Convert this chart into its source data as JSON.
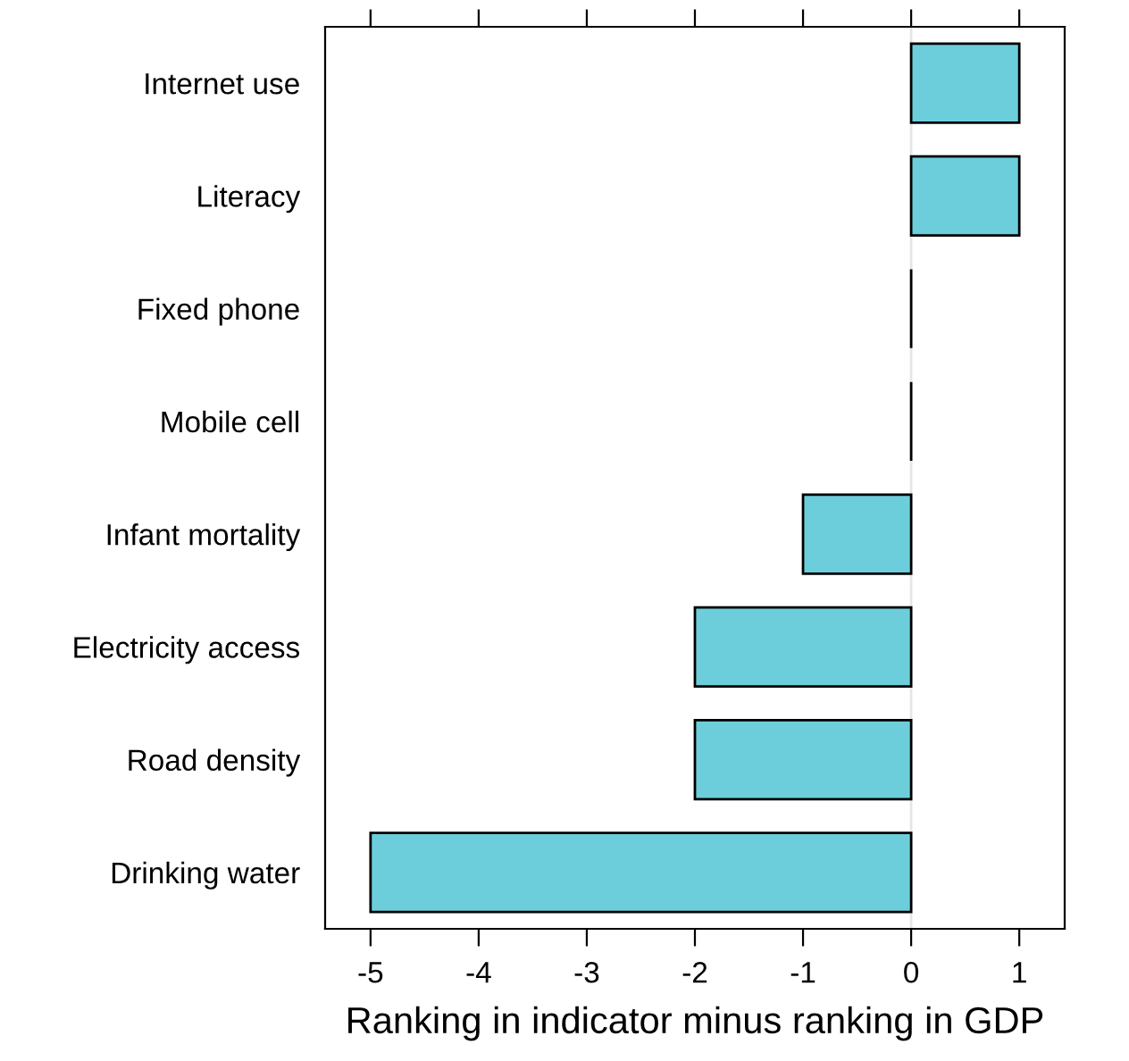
{
  "chart_data": {
    "type": "bar",
    "orientation": "horizontal",
    "categories": [
      "Internet use",
      "Literacy",
      "Fixed phone",
      "Mobile cell",
      "Infant mortality",
      "Electricity access",
      "Road density",
      "Drinking water"
    ],
    "values": [
      1,
      1,
      0,
      0,
      -1,
      -2,
      -2,
      -5
    ],
    "colors": [
      "#6ccedb",
      "#6ccedb",
      "#000000",
      "#000000",
      "#6ccedb",
      "#6ccedb",
      "#6ccedb",
      "#6ccedb"
    ],
    "xlabel": "Ranking in indicator minus ranking in GDP",
    "xlim": [
      -5.42,
      1.42
    ],
    "xticks": [
      -5,
      -4,
      -3,
      -2,
      -1,
      0,
      1
    ],
    "ref_lines": [
      {
        "axis": "x",
        "value": 0,
        "color": "#e6e6e6"
      }
    ],
    "grid": false,
    "legend": false
  }
}
